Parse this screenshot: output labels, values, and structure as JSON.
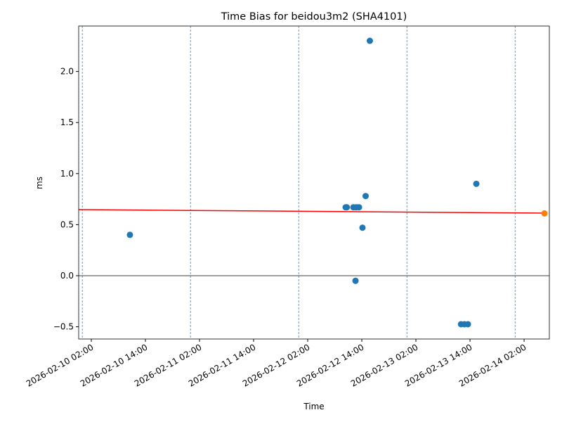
{
  "chart_data": {
    "type": "scatter",
    "title": "Time Bias for beidou3m2 (SHA4101)",
    "x_label": "Time",
    "y_label": "ms",
    "series": [
      {
        "color": "#1f77b4",
        "x": [
          "2026-02-10 10:34",
          "2026-02-12 10:25",
          "2026-02-12 10:40",
          "2026-02-12 12:08",
          "2026-02-12 12:45",
          "2026-02-12 13:23",
          "2026-02-12 12:36",
          "2026-02-12 14:09",
          "2026-02-12 14:51",
          "2026-02-12 15:47",
          "2026-02-13 12:00",
          "2026-02-13 12:45",
          "2026-02-13 13:32",
          "2026-02-13 15:24"
        ],
        "values": [
          0.4,
          0.67,
          0.67,
          0.67,
          0.67,
          0.67,
          -0.05,
          0.47,
          0.78,
          2.3,
          -0.475,
          -0.475,
          -0.475,
          0.9
        ]
      },
      {
        "color": "#ff7f0e",
        "x": [
          "2026-02-14 06:31"
        ],
        "values": [
          0.61
        ]
      }
    ],
    "trend": {
      "color": "red",
      "x": [
        "2026-02-09 23:12",
        "2026-02-14 06:31"
      ],
      "values": [
        0.647,
        0.613
      ]
    },
    "hline": 0,
    "vlines": [
      "2026-02-10 00:00",
      "2026-02-11 00:00",
      "2026-02-12 00:00",
      "2026-02-13 00:00",
      "2026-02-14 00:00"
    ],
    "xlim": [
      "2026-02-09 23:12",
      "2026-02-14 07:36"
    ],
    "xticks": [
      "2026-02-10 02:00",
      "2026-02-10 14:00",
      "2026-02-11 02:00",
      "2026-02-11 14:00",
      "2026-02-12 02:00",
      "2026-02-12 14:00",
      "2026-02-13 02:00",
      "2026-02-13 14:00",
      "2026-02-14 02:00"
    ],
    "ylim": [
      -0.62,
      2.445
    ],
    "yticks": [
      {
        "value": -0.5,
        "label": "−0.5"
      },
      {
        "value": 0,
        "label": "0.0"
      },
      0.5,
      {
        "value": 1,
        "label": "1.0"
      },
      1.5,
      {
        "value": 2,
        "label": "2.0"
      }
    ]
  }
}
